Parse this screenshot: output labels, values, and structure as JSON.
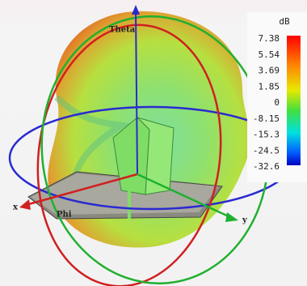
{
  "axes": {
    "theta": "Theta",
    "phi": "Phi",
    "x": "x",
    "y": "y"
  },
  "colorbar": {
    "unit": "dB",
    "labels": [
      "7.38",
      "5.54",
      "3.69",
      "1.85",
      "0",
      "-8.15",
      "-15.3",
      "-24.5",
      "-32.6"
    ]
  }
}
